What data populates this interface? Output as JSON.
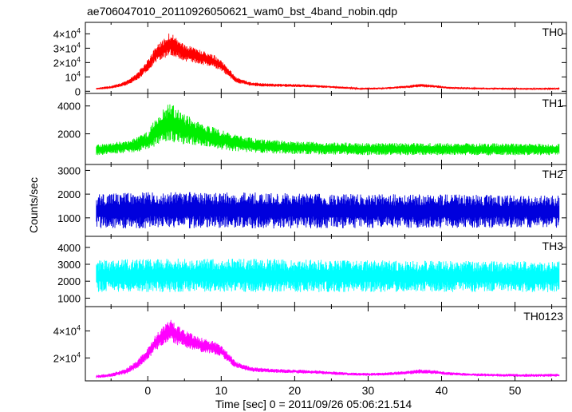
{
  "chart_data": {
    "type": "line",
    "title": "ae706047010_20110926050621_wam0_bst_4band_nobin.qdp",
    "xlabel": "Time [sec] 0 = 2011/09/26 05:06:21.514",
    "ylabel": "Counts/sec",
    "xlim": [
      -8.5,
      57
    ],
    "x_ticks": [
      0,
      10,
      20,
      30,
      40,
      50
    ],
    "x_tick_labels": [
      "0",
      "10",
      "20",
      "30",
      "40",
      "50"
    ],
    "grid": false,
    "panels": [
      {
        "name": "TH0",
        "color": "#ff0000",
        "ylim": [
          -1500,
          48000
        ],
        "y_ticks": [
          0,
          10000,
          20000,
          30000,
          40000
        ],
        "y_tick_labels": [
          {
            "text": "0",
            "exp": ""
          },
          {
            "text": "10",
            "exp": "4"
          },
          {
            "text": "2×10",
            "exp": "4"
          },
          {
            "text": "3×10",
            "exp": "4"
          },
          {
            "text": "4×10",
            "exp": "4"
          }
        ],
        "profile": {
          "x": [
            -7,
            -5,
            -3,
            -1.5,
            0,
            1,
            2,
            3,
            4,
            5,
            7,
            9,
            10,
            11,
            12,
            14,
            17,
            20,
            23,
            26,
            29,
            32,
            35,
            37,
            39,
            41,
            44,
            48,
            52,
            56
          ],
          "mean": [
            1800,
            2800,
            5500,
            10000,
            18000,
            25000,
            29000,
            33000,
            30000,
            27000,
            24000,
            21000,
            18000,
            13000,
            8000,
            5000,
            4200,
            4000,
            3500,
            2700,
            1800,
            2000,
            3000,
            4000,
            3500,
            2400,
            2000,
            1800,
            1700,
            1800
          ],
          "spread": [
            600,
            900,
            1400,
            2200,
            3500,
            5000,
            6000,
            7500,
            6500,
            5500,
            4500,
            4000,
            3500,
            2800,
            1800,
            1200,
            1000,
            900,
            800,
            700,
            600,
            600,
            800,
            1000,
            900,
            700,
            600,
            600,
            600,
            600
          ]
        }
      },
      {
        "name": "TH1",
        "color": "#00ee00",
        "ylim": [
          -200,
          4900
        ],
        "y_ticks": [
          2000,
          4000
        ],
        "y_tick_labels": [
          {
            "text": "2000",
            "exp": ""
          },
          {
            "text": "4000",
            "exp": ""
          }
        ],
        "profile": {
          "x": [
            -7,
            -4,
            -2,
            0,
            1,
            2,
            3,
            4,
            5,
            7,
            9,
            11,
            13,
            16,
            20,
            25,
            30,
            35,
            40,
            45,
            50,
            56
          ],
          "mean": [
            850,
            1000,
            1150,
            1500,
            2100,
            2500,
            2800,
            2600,
            2300,
            2000,
            1700,
            1450,
            1250,
            1100,
            1000,
            950,
            900,
            900,
            900,
            900,
            880,
            880
          ],
          "spread": [
            350,
            400,
            450,
            600,
            900,
            1100,
            1300,
            1200,
            1000,
            800,
            700,
            600,
            500,
            450,
            420,
            400,
            400,
            400,
            400,
            400,
            380,
            380
          ]
        }
      },
      {
        "name": "TH2",
        "color": "#0000dd",
        "ylim": [
          220,
          3250
        ],
        "y_ticks": [
          1000,
          2000,
          3000
        ],
        "y_tick_labels": [
          {
            "text": "1000",
            "exp": ""
          },
          {
            "text": "2000",
            "exp": ""
          },
          {
            "text": "3000",
            "exp": ""
          }
        ],
        "profile": {
          "x": [
            -7,
            0,
            10,
            20,
            30,
            40,
            50,
            56
          ],
          "mean": [
            1280,
            1320,
            1320,
            1300,
            1280,
            1280,
            1270,
            1260
          ],
          "spread": [
            650,
            700,
            700,
            680,
            650,
            650,
            620,
            620
          ]
        }
      },
      {
        "name": "TH3",
        "color": "#00ffff",
        "ylim": [
          500,
          4650
        ],
        "y_ticks": [
          1000,
          2000,
          3000,
          4000
        ],
        "y_tick_labels": [
          {
            "text": "1000",
            "exp": ""
          },
          {
            "text": "2000",
            "exp": ""
          },
          {
            "text": "3000",
            "exp": ""
          },
          {
            "text": "4000",
            "exp": ""
          }
        ],
        "profile": {
          "x": [
            -7,
            0,
            10,
            20,
            30,
            40,
            50,
            56
          ],
          "mean": [
            2300,
            2350,
            2350,
            2320,
            2300,
            2280,
            2280,
            2260
          ],
          "spread": [
            850,
            900,
            900,
            880,
            850,
            850,
            830,
            830
          ]
        }
      },
      {
        "name": "TH0123",
        "color": "#ff00ff",
        "ylim": [
          3000,
          58000
        ],
        "y_ticks": [
          20000,
          40000
        ],
        "y_tick_labels": [
          {
            "text": "2×10",
            "exp": "4"
          },
          {
            "text": "4×10",
            "exp": "4"
          }
        ],
        "profile": {
          "x": [
            -7,
            -5,
            -3,
            -1.5,
            0,
            1,
            2,
            3,
            4,
            5,
            7,
            9,
            10,
            11,
            12,
            14,
            17,
            20,
            23,
            26,
            29,
            32,
            35,
            37,
            39,
            41,
            44,
            48,
            52,
            56
          ],
          "mean": [
            6200,
            7200,
            10000,
            15000,
            23000,
            31000,
            36000,
            40000,
            37000,
            34000,
            30000,
            27500,
            25000,
            20000,
            15000,
            11500,
            10500,
            10000,
            9500,
            8500,
            7800,
            8000,
            9000,
            10000,
            9500,
            8300,
            7600,
            7200,
            7000,
            7200
          ],
          "spread": [
            1000,
            1300,
            1800,
            2800,
            4000,
            5500,
            6500,
            8000,
            7000,
            6000,
            5000,
            4500,
            4000,
            3200,
            2200,
            1600,
            1400,
            1300,
            1200,
            1100,
            1000,
            1000,
            1200,
            1400,
            1300,
            1100,
            1000,
            1000,
            1000,
            1000
          ]
        }
      }
    ]
  }
}
